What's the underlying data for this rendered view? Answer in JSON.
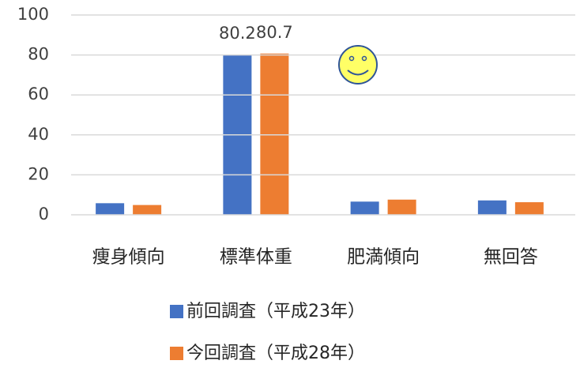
{
  "chart_data": {
    "type": "bar",
    "categories": [
      "痩身傾向",
      "標準体重",
      "肥満傾向",
      "無回答"
    ],
    "series": [
      {
        "name": "前回調査（平成23年）",
        "color": "#4472c4",
        "values": [
          5.8,
          80.2,
          6.6,
          7.2
        ],
        "value_labels": [
          null,
          "80.2",
          null,
          null
        ]
      },
      {
        "name": "今回調査（平成28年）",
        "color": "#ed7d31",
        "values": [
          4.9,
          80.7,
          7.6,
          6.3
        ],
        "value_labels": [
          null,
          "80.7",
          null,
          null
        ]
      }
    ],
    "ylim": [
      0,
      100
    ],
    "yticks": [
      0,
      20,
      40,
      60,
      80,
      100
    ],
    "grid": true,
    "legend": "bottom"
  }
}
